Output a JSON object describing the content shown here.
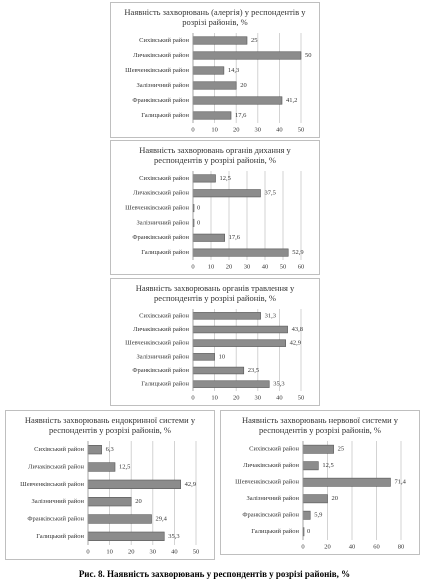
{
  "chart_data": [
    {
      "type": "bar",
      "orientation": "horizontal",
      "title": "Наявність захворювань (алергія) у респондентів у розрізі районів, %",
      "categories": [
        "Сихівський район",
        "Личаківський район",
        "Шевченківський район",
        "Залізничний район",
        "Франківський район",
        "Галицький район"
      ],
      "values": [
        25,
        50,
        14.3,
        20,
        41.2,
        17.6
      ],
      "value_labels": [
        "25",
        "50",
        "14,3",
        "20",
        "41,2",
        "17,6"
      ],
      "color": "#8c8c8c",
      "xlim": [
        0,
        50
      ],
      "xticks": [
        0,
        10,
        20,
        30,
        40,
        50
      ],
      "grid": true
    },
    {
      "type": "bar",
      "orientation": "horizontal",
      "title": "Наявність захворювань органів дихання у респондентів у розрізі районів, %",
      "categories": [
        "Сихівський район",
        "Личаківський район",
        "Шевченківський район",
        "Залізничний район",
        "Франківський район",
        "Галицький район"
      ],
      "values": [
        12.5,
        37.5,
        0,
        0,
        17.6,
        52.9
      ],
      "value_labels": [
        "12,5",
        "37,5",
        "0",
        "0",
        "17,6",
        "52,9"
      ],
      "color": "#8c8c8c",
      "xlim": [
        0,
        60
      ],
      "xticks": [
        0,
        10,
        20,
        30,
        40,
        50,
        60
      ],
      "grid": true
    },
    {
      "type": "bar",
      "orientation": "horizontal",
      "title": "Наявність захворювань органів травлення у респондентів у розрізі районів, %",
      "categories": [
        "Сихівський район",
        "Личаківський район",
        "Шевченківський район",
        "Залізничний район",
        "Франківський район",
        "Галицький район"
      ],
      "values": [
        31.3,
        43.8,
        42.9,
        10,
        23.5,
        35.3
      ],
      "value_labels": [
        "31,3",
        "43,8",
        "42,9",
        "10",
        "23,5",
        "35,3"
      ],
      "color": "#8c8c8c",
      "xlim": [
        0,
        50
      ],
      "xticks": [
        0,
        10,
        20,
        30,
        40,
        50
      ],
      "grid": true
    },
    {
      "type": "bar",
      "orientation": "horizontal",
      "title": "Наявність захворювань ендокринної системи у респондентів у розрізі районів, %",
      "categories": [
        "Сихівський район",
        "Личаківський район",
        "Шевченківський район",
        "Залізничний район",
        "Франківський район",
        "Галицький район"
      ],
      "values": [
        6.3,
        12.5,
        42.9,
        20,
        29.4,
        35.3
      ],
      "value_labels": [
        "6,3",
        "12,5",
        "42,9",
        "20",
        "29,4",
        "35,3"
      ],
      "color": "#8c8c8c",
      "xlim": [
        0,
        50
      ],
      "xticks": [
        0,
        10,
        20,
        30,
        40,
        50
      ],
      "grid": true
    },
    {
      "type": "bar",
      "orientation": "horizontal",
      "title": "Наявність захворювань нервової системи у респондентів у розрізі районів, %",
      "categories": [
        "Сихівський район",
        "Личаківський район",
        "Шевченківський район",
        "Залізничний район",
        "Франківський район",
        "Галицький район"
      ],
      "values": [
        25,
        12.5,
        71.4,
        20,
        5.9,
        0
      ],
      "value_labels": [
        "25",
        "12,5",
        "71,4",
        "20",
        "5,9",
        "0"
      ],
      "color": "#8c8c8c",
      "xlim": [
        0,
        80
      ],
      "xticks": [
        0,
        20,
        40,
        60,
        80
      ],
      "grid": true
    }
  ],
  "caption": "Рис. 8. Наявність захворювань у респондентів у розрізі районів, %"
}
